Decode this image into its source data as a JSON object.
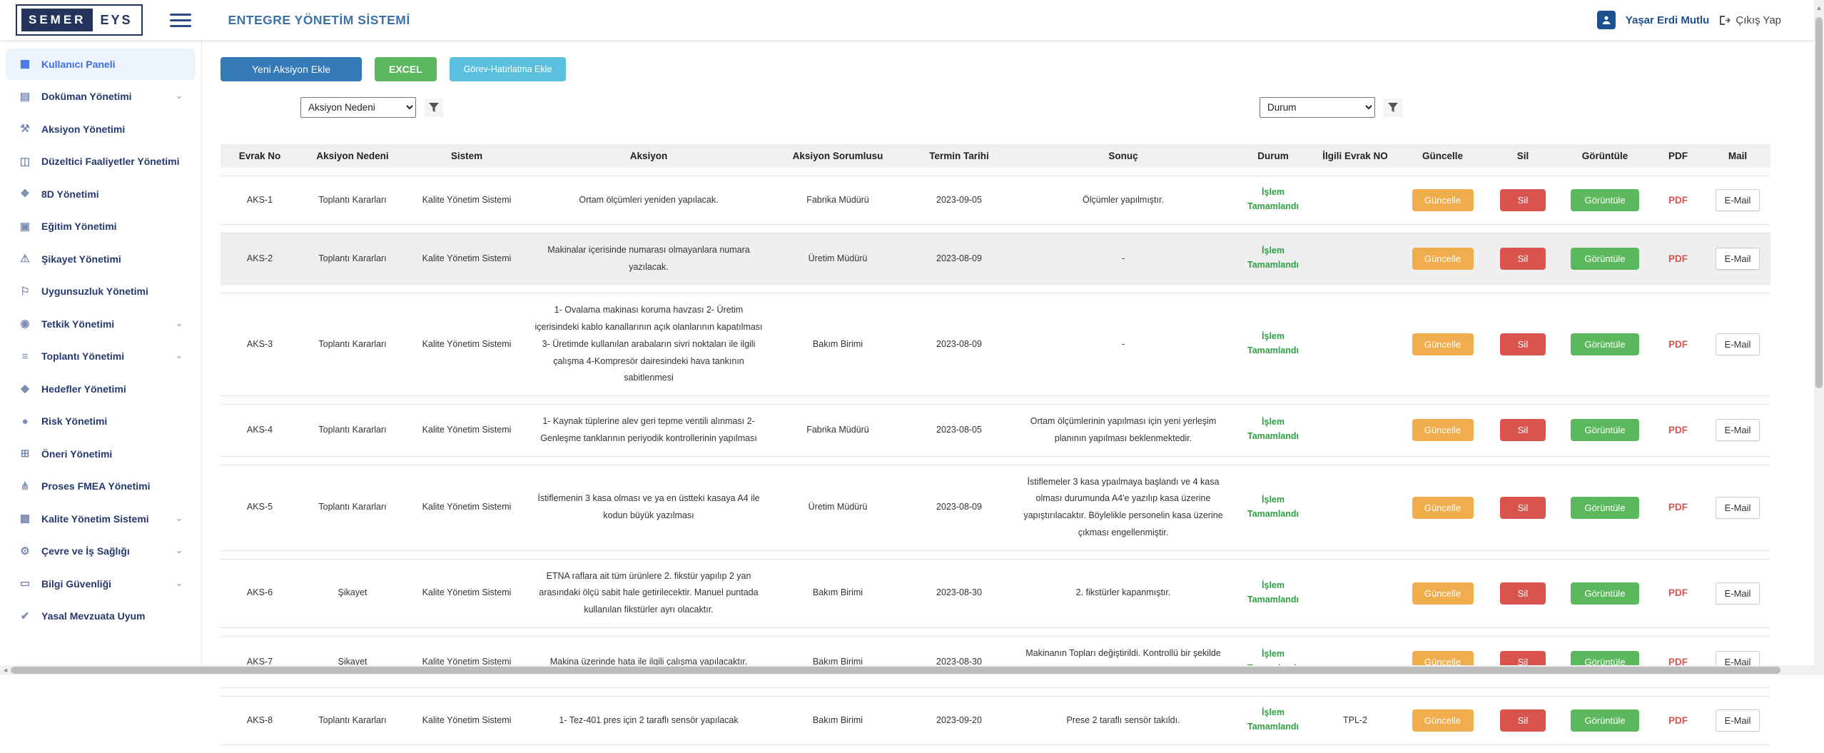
{
  "header": {
    "logo_primary": "SEMER",
    "logo_secondary": "EYS",
    "title": "ENTEGRE YÖNETİM SİSTEMİ",
    "user_name": "Yaşar Erdi Mutlu",
    "logout_label": "Çıkış Yap"
  },
  "sidebar": {
    "items": [
      {
        "label": "Kullanıcı Paneli",
        "icon": "dashboard-icon",
        "active": true,
        "expandable": false
      },
      {
        "label": "Doküman Yönetimi",
        "icon": "document-icon",
        "active": false,
        "expandable": true
      },
      {
        "label": "Aksiyon Yönetimi",
        "icon": "tool-icon",
        "active": false,
        "expandable": false
      },
      {
        "label": "Düzeltici Faaliyetler Yönetimi",
        "icon": "corrective-card-icon",
        "active": false,
        "expandable": false
      },
      {
        "label": "8D Yönetimi",
        "icon": "puzzle-icon",
        "active": false,
        "expandable": false
      },
      {
        "label": "Eğitim Yönetimi",
        "icon": "book-icon",
        "active": false,
        "expandable": false
      },
      {
        "label": "Şikayet Yönetimi",
        "icon": "warning-icon",
        "active": false,
        "expandable": false
      },
      {
        "label": "Uygunsuzluk Yönetimi",
        "icon": "flag-icon",
        "active": false,
        "expandable": false
      },
      {
        "label": "Tetkik Yönetimi",
        "icon": "aperture-icon",
        "active": false,
        "expandable": true
      },
      {
        "label": "Toplantı Yönetimi",
        "icon": "meeting-list-icon",
        "active": false,
        "expandable": true
      },
      {
        "label": "Hedefler Yönetimi",
        "icon": "target-chart-icon",
        "active": false,
        "expandable": false
      },
      {
        "label": "Risk Yönetimi",
        "icon": "droplet-icon",
        "active": false,
        "expandable": false
      },
      {
        "label": "Öneri Yönetimi",
        "icon": "suggestion-calendar-icon",
        "active": false,
        "expandable": false
      },
      {
        "label": "Proses FMEA Yönetimi",
        "icon": "flow-fork-icon",
        "active": false,
        "expandable": false
      },
      {
        "label": "Kalite Yönetim Sistemi",
        "icon": "grid-icon",
        "active": false,
        "expandable": true
      },
      {
        "label": "Çevre ve İş Sağlığı",
        "icon": "gear-icon",
        "active": false,
        "expandable": true
      },
      {
        "label": "Bilgi Güvenliği",
        "icon": "monitor-icon",
        "active": false,
        "expandable": true
      },
      {
        "label": "Yasal Mevzuata Uyum",
        "icon": "thumbs-up-icon",
        "active": false,
        "expandable": false
      }
    ]
  },
  "toolbar": {
    "new_action_label": "Yeni Aksiyon Ekle",
    "excel_label": "EXCEL",
    "task_reminder_label": "Görev-Hatırlatma Ekle",
    "filter_left_selected": "Aksiyon Nedeni",
    "filter_right_selected": "Durum"
  },
  "table": {
    "headers": [
      "Evrak No",
      "Aksiyon Nedeni",
      "Sistem",
      "Aksiyon",
      "Aksiyon Sorumlusu",
      "Termin Tarihi",
      "Sonuç",
      "Durum",
      "İlgili Evrak NO",
      "Güncelle",
      "Sil",
      "Görüntüle",
      "PDF",
      "Mail"
    ],
    "row_actions": {
      "update": "Güncelle",
      "delete": "Sil",
      "view": "Görüntüle",
      "pdf": "PDF",
      "mail": "E-Mail"
    },
    "rows": [
      {
        "evrak_no": "AKS-1",
        "aksiyon_nedeni": "Toplantı Kararları",
        "sistem": "Kalite Yönetim Sistemi",
        "aksiyon": "Ortam ölçümleri yeniden yapılacak.",
        "sorumlu": "Fabrika Müdürü",
        "termin": "2023-09-05",
        "sonuc": "Ölçümler yapılmıştır.",
        "durum": "İşlem Tamamlandı",
        "ilgili_evrak_no": "",
        "highlighted": false
      },
      {
        "evrak_no": "AKS-2",
        "aksiyon_nedeni": "Toplantı Kararları",
        "sistem": "Kalite Yönetim Sistemi",
        "aksiyon": "Makinalar içerisinde numarası olmayanlara numara yazılacak.",
        "sorumlu": "Üretim Müdürü",
        "termin": "2023-08-09",
        "sonuc": "-",
        "durum": "İşlem Tamamlandı",
        "ilgili_evrak_no": "",
        "highlighted": true
      },
      {
        "evrak_no": "AKS-3",
        "aksiyon_nedeni": "Toplantı Kararları",
        "sistem": "Kalite Yönetim Sistemi",
        "aksiyon": "1- Ovalama makinası koruma havzası 2- Üretim içerisindeki kablo kanallarının açık olanlarının kapatılması 3- Üretimde kullanılan arabaların sivri noktaları ile ilgili çalışma 4-Kompresör dairesindeki hava tankının sabitlenmesi",
        "sorumlu": "Bakım Birimi",
        "termin": "2023-08-09",
        "sonuc": "-",
        "durum": "İşlem Tamamlandı",
        "ilgili_evrak_no": "",
        "highlighted": false
      },
      {
        "evrak_no": "AKS-4",
        "aksiyon_nedeni": "Toplantı Kararları",
        "sistem": "Kalite Yönetim Sistemi",
        "aksiyon": "1- Kaynak tüplerine alev geri tepme ventili alınması 2- Genleşme tanklarının periyodik kontrollerinin yapılması",
        "sorumlu": "Fabrika Müdürü",
        "termin": "2023-08-05",
        "sonuc": "Ortam ölçümlerinin yapılması için yeni yerleşim planının yapılması beklenmektedir.",
        "durum": "İşlem Tamamlandı",
        "ilgili_evrak_no": "",
        "highlighted": false
      },
      {
        "evrak_no": "AKS-5",
        "aksiyon_nedeni": "Toplantı Kararları",
        "sistem": "Kalite Yönetim Sistemi",
        "aksiyon": "İstiflemenin 3 kasa olması ve ya en üstteki kasaya A4 ile kodun büyük yazılması",
        "sorumlu": "Üretim Müdürü",
        "termin": "2023-08-09",
        "sonuc": "İstiflemeler 3 kasa ypaılmaya başlandı ve 4 kasa olması durumunda A4'e yazılıp kasa üzerine yapıştırılacaktır. Böylelikle personelin kasa üzerine çıkması engellenmiştir.",
        "durum": "İşlem Tamamlandı",
        "ilgili_evrak_no": "",
        "highlighted": false
      },
      {
        "evrak_no": "AKS-6",
        "aksiyon_nedeni": "Şikayet",
        "sistem": "Kalite Yönetim Sistemi",
        "aksiyon": "ETNA raflara ait tüm ürünlere 2. fikstür yapılıp 2 yan arasındaki ölçü sabit hale getirilecektir. Manuel puntada kullanılan fikstürler ayrı olacaktır.",
        "sorumlu": "Bakım Birimi",
        "termin": "2023-08-30",
        "sonuc": "2. fikstürler kapanmıştır.",
        "durum": "İşlem Tamamlandı",
        "ilgili_evrak_no": "",
        "highlighted": false
      },
      {
        "evrak_no": "AKS-7",
        "aksiyon_nedeni": "Şikayet",
        "sistem": "Kalite Yönetim Sistemi",
        "aksiyon": "Makina üzerinde hata ile ilgili çalışma yapılacaktır.",
        "sorumlu": "Bakım Birimi",
        "termin": "2023-08-30",
        "sonuc": "Makinanın Topları değiştirildi. Kontrollü bir şekilde üretimleri devam etmektedir.",
        "durum": "İşlem Tamamlandı",
        "ilgili_evrak_no": "",
        "highlighted": false
      },
      {
        "evrak_no": "AKS-8",
        "aksiyon_nedeni": "Toplantı Kararları",
        "sistem": "Kalite Yönetim Sistemi",
        "aksiyon": "1- Tez-401 pres için 2 taraflı sensör yapılacak",
        "sorumlu": "Bakım Birimi",
        "termin": "2023-09-20",
        "sonuc": "Prese 2 taraflı sensör takıldı.",
        "durum": "İşlem Tamamlandı",
        "ilgili_evrak_no": "TPL-2",
        "highlighted": false
      }
    ]
  },
  "colors": {
    "primary_blue": "#337ab7",
    "success_green": "#5cb85c",
    "info_cyan": "#5bc0de",
    "warning_orange": "#f0ad4e",
    "danger_red": "#d9534f",
    "status_green": "#2f9e44",
    "title_blue": "#3c72a8",
    "sidebar_navy": "#25396f",
    "active_item_blue": "#3e6de0",
    "logo_navy": "#22345c"
  }
}
